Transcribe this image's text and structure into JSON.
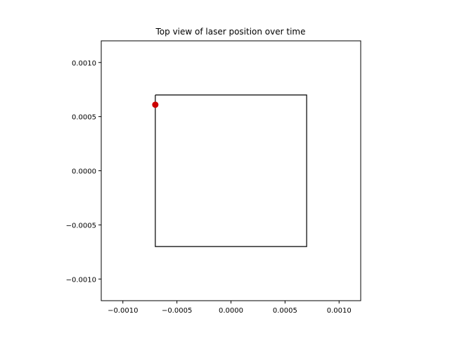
{
  "chart_data": {
    "type": "scatter",
    "title": "Top view of laser position over time",
    "xlabel": "",
    "ylabel": "",
    "xlim": [
      -0.0012,
      0.0012
    ],
    "ylim": [
      -0.0012,
      0.0012
    ],
    "xticks": [
      -0.001,
      -0.0005,
      0.0,
      0.0005,
      0.001
    ],
    "yticks": [
      -0.001,
      -0.0005,
      0.0,
      0.0005,
      0.001
    ],
    "xtick_labels": [
      "−0.0010",
      "−0.0005",
      "0.0000",
      "0.0005",
      "0.0010"
    ],
    "ytick_labels": [
      "−0.0010",
      "−0.0005",
      "0.0000",
      "0.0005",
      "0.0010"
    ],
    "grid": false,
    "series": [
      {
        "type": "line",
        "x": [
          -0.0007,
          0.0007,
          0.0007,
          -0.0007,
          -0.0007
        ],
        "y": [
          0.0007,
          0.0007,
          -0.0007,
          -0.0007,
          0.0007
        ],
        "color": "#000000"
      },
      {
        "type": "scatter",
        "x": [
          -0.0007
        ],
        "y": [
          0.00061
        ],
        "color": "#cc0000"
      }
    ]
  }
}
